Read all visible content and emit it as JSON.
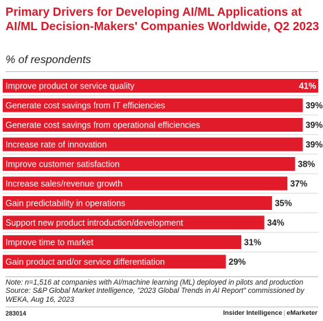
{
  "title": "Primary Drivers for Developing AI/ML Applications at AI/ML Decision-Makers' Companies Worldwide, Q2 2023",
  "subtitle": "% of respondents",
  "chart_data": {
    "type": "bar",
    "orientation": "horizontal",
    "categories": [
      "Improve product or service quality",
      "Generate cost savings from IT efficiencies",
      "Generate cost savings from operational efficiencies",
      "Increase rate of innovation",
      "Improve customer satisfaction",
      "Increase sales/revenue growth",
      "Gain predictability in operations",
      "Support new product introduction/development",
      "Improve time to market",
      "Gain product and/or service differentiation"
    ],
    "values": [
      41,
      39,
      39,
      39,
      38,
      37,
      35,
      34,
      31,
      29
    ],
    "value_labels": [
      "41%",
      "39%",
      "39%",
      "39%",
      "38%",
      "37%",
      "35%",
      "34%",
      "31%",
      "29%"
    ],
    "xlim": [
      0,
      41
    ],
    "color": "#e11b2a"
  },
  "note": "Note: n=1,516 at companies with AI/machine learning (ML) deployed in pilots and production",
  "source": "Source: S&P Global Market Intelligence, \"2023 Global Trends in AI Report\" commissioned by WEKA, Aug 16, 2023",
  "footer": {
    "chart_id": "283014",
    "brand_left": "Insider Intelligence",
    "separator": "|",
    "brand_right": "eMarketer"
  }
}
